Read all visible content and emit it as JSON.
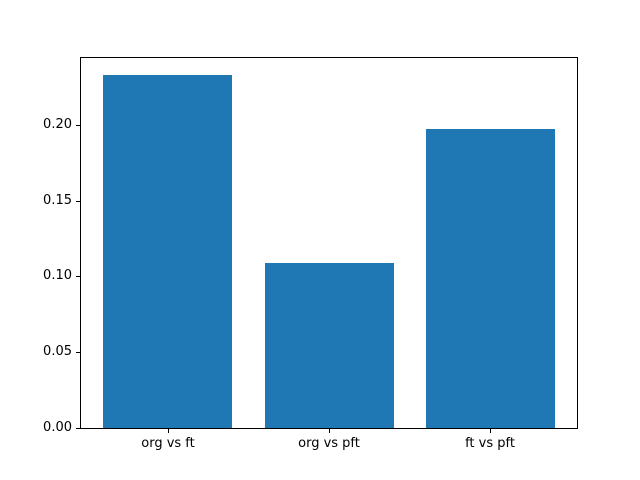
{
  "chart_data": {
    "type": "bar",
    "title": "",
    "xlabel": "",
    "ylabel": "",
    "categories": [
      "org vs ft",
      "org vs pft",
      "ft vs pft"
    ],
    "values": [
      0.233,
      0.109,
      0.197
    ],
    "ylim": [
      0,
      0.244
    ],
    "yticks": [
      0.0,
      0.05,
      0.1,
      0.15,
      0.2
    ],
    "ytick_labels": [
      "0.00",
      "0.05",
      "0.10",
      "0.15",
      "0.20"
    ],
    "bar_color": "#1f77b4",
    "background_color": "#ffffff",
    "spine_color": "#000000",
    "grid": false,
    "legend": null,
    "bar_width_fraction": 0.26,
    "bar_center_fractions": [
      0.175,
      0.5,
      0.825
    ]
  }
}
